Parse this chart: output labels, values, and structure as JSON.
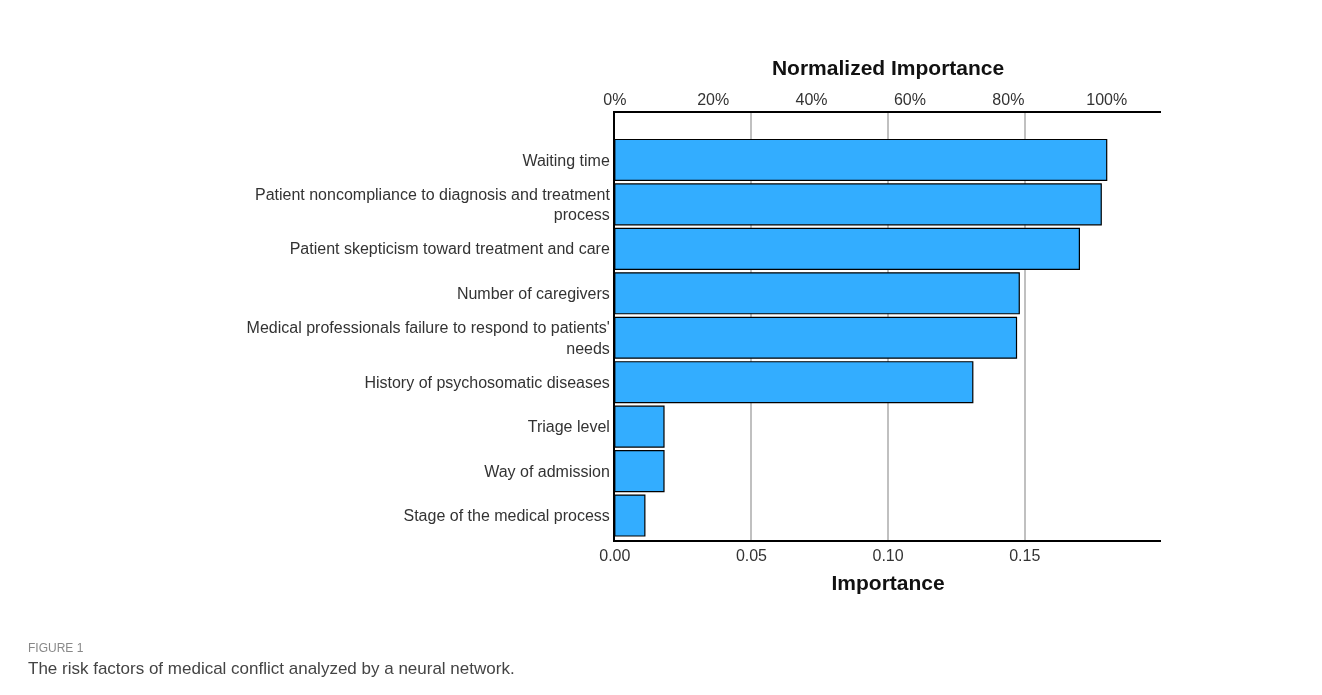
{
  "chart_data": {
    "type": "bar",
    "orientation": "horizontal",
    "categories": [
      "Waiting time",
      "Patient noncompliance to diagnosis and treatment\nprocess",
      "Patient skepticism toward treatment and care",
      "Number of caregivers",
      "Medical professionals failure to respond to patients'\nneeds",
      "History of psychosomatic diseases",
      "Triage level",
      "Way of admission",
      "Stage of the medical process"
    ],
    "values": [
      0.18,
      0.178,
      0.17,
      0.148,
      0.147,
      0.131,
      0.018,
      0.018,
      0.011
    ],
    "color": "#33adff",
    "xlim": [
      0,
      0.2
    ],
    "xticks": [
      {
        "value": 0,
        "label": "0.00"
      },
      0.05,
      {
        "value": 0.1,
        "label": "0.10"
      },
      0.15
    ],
    "xlabel": "Importance",
    "x2lim": [
      0,
      111.1
    ],
    "x2ticks": [
      {
        "value": 0,
        "label": "0%"
      },
      {
        "value": 20,
        "label": "20%"
      },
      {
        "value": 40,
        "label": "40%"
      },
      {
        "value": 60,
        "label": "60%"
      },
      {
        "value": 80,
        "label": "80%"
      },
      {
        "value": 100,
        "label": "100%"
      }
    ],
    "x2label": "Normalized Importance",
    "grid": "x",
    "annotations": [
      "FIGURE 1",
      "The risk factors of medical conflict analyzed by a neural network."
    ]
  }
}
